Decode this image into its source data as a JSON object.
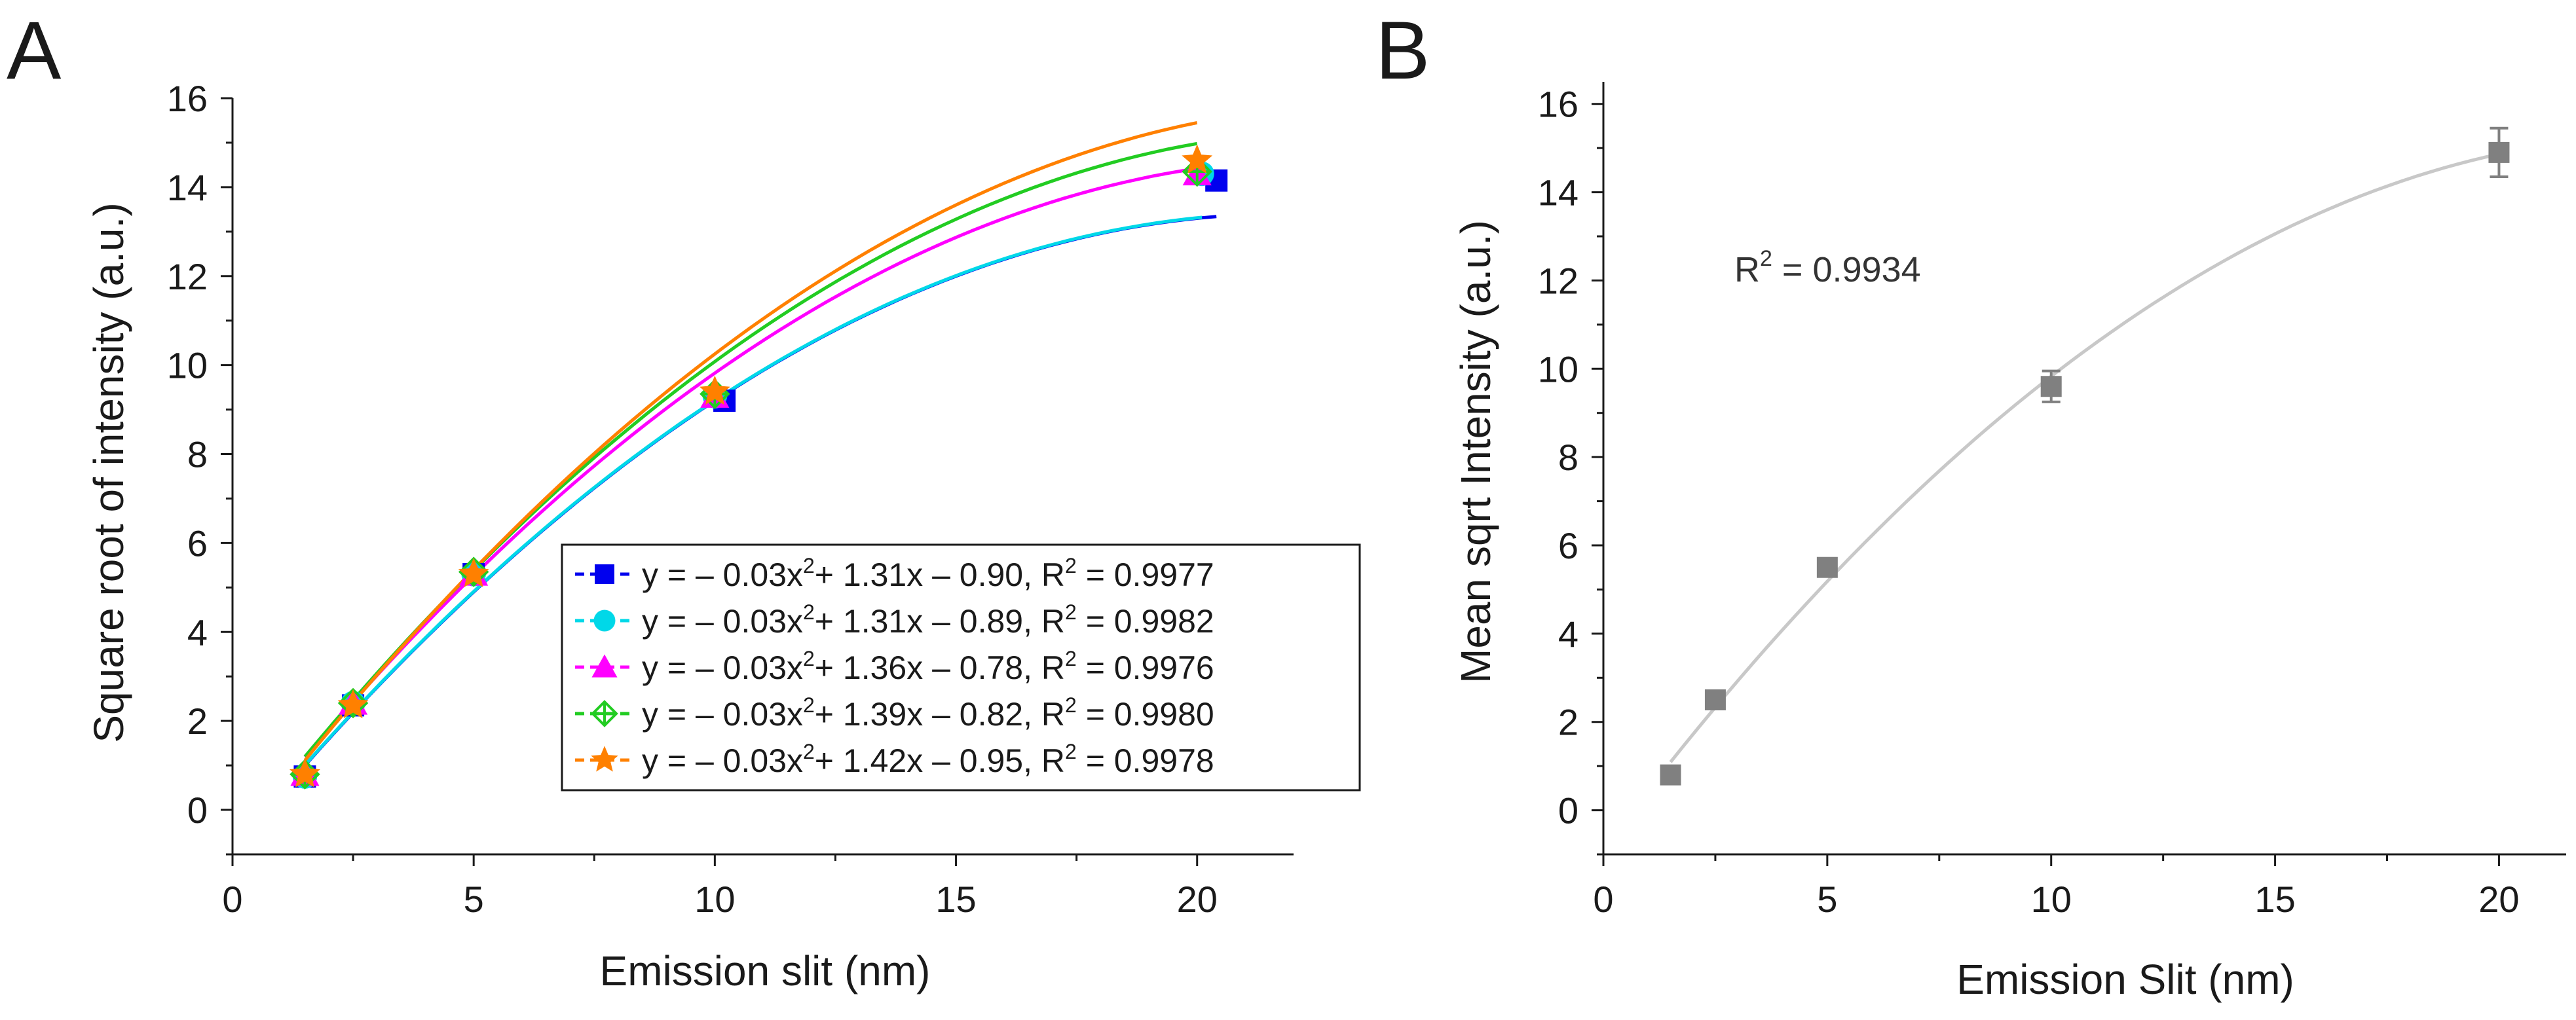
{
  "panels": [
    {
      "label": "A",
      "xlabel": "Emission slit (nm)",
      "ylabel": "Square root of intensity (a.u.)",
      "xlim": [
        0,
        22
      ],
      "ylim": [
        -1,
        16
      ],
      "xticks": [
        0,
        5,
        10,
        15,
        20
      ],
      "yticks": [
        0,
        2,
        4,
        6,
        8,
        10,
        12,
        14,
        16
      ]
    },
    {
      "label": "B",
      "xlabel": "Emission Slit (nm)",
      "ylabel": "Mean sqrt Intensity (a.u.)",
      "xlim": [
        0,
        21.5
      ],
      "ylim": [
        -1,
        16.5
      ],
      "xticks": [
        0,
        5,
        10,
        15,
        20
      ],
      "yticks": [
        0,
        2,
        4,
        6,
        8,
        10,
        12,
        14,
        16
      ],
      "annotation": {
        "base": "R",
        "sup": "2",
        "rest": " = 0.9934"
      }
    }
  ],
  "chart_data": [
    {
      "type": "scatter",
      "title": "",
      "xlabel": "Emission slit (nm)",
      "ylabel": "Square root of intensity (a.u.)",
      "xlim": [
        0,
        22
      ],
      "ylim": [
        -1,
        16
      ],
      "grid": false,
      "legend_position": "lower-right",
      "x": [
        1.5,
        2.5,
        5,
        10,
        20
      ],
      "series": [
        {
          "legend": {
            "pre": "y = – 0.03x",
            "sup1": "2",
            "mid": "+ 1.31x – 0.90, R",
            "sup2": "2",
            "post": " = 0.9977"
          },
          "color": "#0000ee",
          "marker": "square",
          "x": [
            1.5,
            2.5,
            5,
            10.2,
            20.4
          ],
          "values": [
            0.75,
            2.35,
            5.3,
            9.2,
            14.15
          ],
          "fit": {
            "a": -0.03,
            "b": 1.31,
            "c": -0.9
          }
        },
        {
          "legend": {
            "pre": "y = – 0.03x",
            "sup1": "2",
            "mid": "+ 1.31x – 0.89, R",
            "sup2": "2",
            "post": " = 0.9982"
          },
          "color": "#00d8e8",
          "marker": "circle",
          "x": [
            1.5,
            2.5,
            5,
            10,
            20.1
          ],
          "values": [
            0.75,
            2.4,
            5.3,
            9.3,
            14.3
          ],
          "fit": {
            "a": -0.03,
            "b": 1.31,
            "c": -0.89
          }
        },
        {
          "legend": {
            "pre": "y = – 0.03x",
            "sup1": "2",
            "mid": "+ 1.36x – 0.78, R",
            "sup2": "2",
            "post": " = 0.9976"
          },
          "color": "#ff00ff",
          "marker": "triangle",
          "x": [
            1.5,
            2.5,
            5,
            10,
            20
          ],
          "values": [
            0.8,
            2.4,
            5.3,
            9.3,
            14.3
          ],
          "fit": {
            "a": -0.03,
            "b": 1.36,
            "c": -0.78
          }
        },
        {
          "legend": {
            "pre": "y = – 0.03x",
            "sup1": "2",
            "mid": "+ 1.39x – 0.82, R",
            "sup2": "2",
            "post": " = 0.9980"
          },
          "color": "#22cc22",
          "marker": "diamond-cross",
          "x": [
            1.5,
            2.5,
            5,
            10,
            20
          ],
          "values": [
            0.8,
            2.4,
            5.35,
            9.35,
            14.35
          ],
          "fit": {
            "a": -0.03,
            "b": 1.39,
            "c": -0.82
          }
        },
        {
          "legend": {
            "pre": "y = – 0.03x",
            "sup1": "2",
            "mid": "+ 1.42x – 0.95, R",
            "sup2": "2",
            "post": " = 0.9978"
          },
          "color": "#ff8000",
          "marker": "star",
          "x": [
            1.5,
            2.5,
            5,
            10,
            20
          ],
          "values": [
            0.8,
            2.35,
            5.3,
            9.4,
            14.6
          ],
          "fit": {
            "a": -0.03,
            "b": 1.42,
            "c": -0.95
          }
        }
      ]
    },
    {
      "type": "scatter",
      "title": "",
      "xlabel": "Emission Slit (nm)",
      "ylabel": "Mean sqrt Intensity (a.u.)",
      "xlim": [
        0,
        21.5
      ],
      "ylim": [
        -1,
        16.5
      ],
      "grid": false,
      "x": [
        1.5,
        2.5,
        5,
        10,
        20
      ],
      "series": [
        {
          "color": "#808080",
          "marker": "square",
          "values": [
            0.8,
            2.5,
            5.5,
            9.6,
            14.9
          ],
          "errors": [
            0.1,
            0.1,
            0.12,
            0.35,
            0.55
          ]
        }
      ],
      "fit_line": {
        "color": "#c8c8c8",
        "x_range": [
          1.5,
          20
        ]
      },
      "annotation": "R^2 = 0.9934"
    }
  ]
}
